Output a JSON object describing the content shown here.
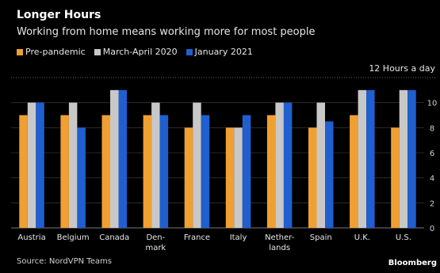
{
  "chart_data": {
    "type": "bar",
    "title": "Longer Hours",
    "subtitle": "Working from home means working more for most people",
    "unit_label": "12 Hours a day",
    "categories": [
      [
        "Austria"
      ],
      [
        "Belgium"
      ],
      [
        "Canada"
      ],
      [
        "Den-",
        "mark"
      ],
      [
        "France"
      ],
      [
        "Italy"
      ],
      [
        "Nether-",
        "lands"
      ],
      [
        "Spain"
      ],
      [
        "U.K."
      ],
      [
        "U.S."
      ]
    ],
    "series": [
      {
        "name": "Pre-pandemic",
        "color": "#f0a032",
        "values": [
          9,
          9,
          9,
          9,
          8,
          8,
          9,
          8,
          9,
          8
        ]
      },
      {
        "name": "March-April 2020",
        "color": "#c8c8c8",
        "values": [
          10,
          10,
          11,
          10,
          10,
          8,
          10,
          10,
          11,
          11
        ]
      },
      {
        "name": "January 2021",
        "color": "#1f5fd0",
        "values": [
          10,
          8,
          11,
          9,
          9,
          9,
          10,
          8.5,
          11,
          11
        ]
      }
    ],
    "yticks": [
      0,
      2,
      4,
      6,
      8,
      10
    ],
    "ylim": [
      0,
      12
    ],
    "grid": true,
    "legend": "top-left"
  },
  "footer": {
    "source": "Source: NordVPN Teams",
    "brand": "Bloomberg"
  }
}
